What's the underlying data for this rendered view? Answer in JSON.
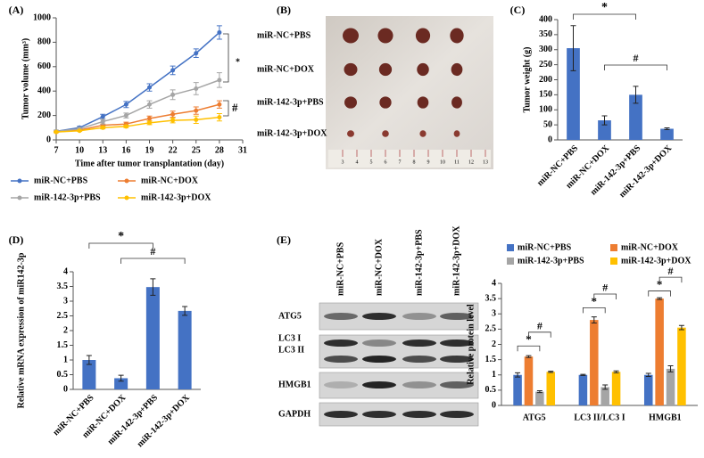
{
  "chart_data": [
    {
      "type": "line",
      "panel_label": "(A)",
      "x_label": "Time after tumor transplantation (day)",
      "y_label": "Tumor volume (mm³)",
      "x": [
        7,
        10,
        13,
        16,
        19,
        22,
        25,
        28
      ],
      "xlim": [
        7,
        31
      ],
      "xticks": [
        7,
        10,
        13,
        16,
        19,
        22,
        25,
        28,
        31
      ],
      "ylim": [
        0,
        1000
      ],
      "yticks": [
        0,
        200,
        400,
        600,
        800,
        1000
      ],
      "series": [
        {
          "name": "miR-NC+PBS",
          "color": "#4472c4",
          "values": [
            70,
            100,
            190,
            290,
            430,
            570,
            710,
            880
          ],
          "errors": [
            10,
            10,
            20,
            25,
            30,
            35,
            35,
            55
          ]
        },
        {
          "name": "miR-NC+DOX",
          "color": "#ed7d31",
          "values": [
            65,
            80,
            120,
            130,
            175,
            210,
            240,
            290
          ],
          "errors": [
            5,
            5,
            10,
            15,
            20,
            25,
            30,
            30
          ]
        },
        {
          "name": "miR-142-3p+PBS",
          "color": "#a5a5a5",
          "values": [
            70,
            90,
            150,
            200,
            290,
            370,
            420,
            490
          ],
          "errors": [
            10,
            10,
            20,
            20,
            30,
            40,
            50,
            60
          ]
        },
        {
          "name": "miR-142-3p+DOX",
          "color": "#ffc000",
          "values": [
            65,
            75,
            100,
            110,
            140,
            160,
            165,
            185
          ],
          "errors": [
            5,
            5,
            10,
            10,
            15,
            20,
            30,
            30
          ]
        }
      ],
      "annotations": [
        "*",
        "#"
      ]
    },
    {
      "type": "image",
      "panel_label": "(B)",
      "row_labels": [
        "miR-NC+PBS",
        "miR-NC+DOX",
        "miR-142-3p+PBS",
        "miR-142-3p+DOX"
      ],
      "ruler_labels": [
        3,
        4,
        5,
        6,
        7,
        8,
        9,
        10,
        11,
        12,
        13
      ]
    },
    {
      "type": "bar",
      "panel_label": "(C)",
      "y_label": "Tumor weight (g)",
      "categories": [
        "miR-NC+PBS",
        "miR-NC+DOX",
        "miR-142-3p+PBS",
        "miR-142-3p+DOX"
      ],
      "values": [
        305,
        65,
        150,
        37
      ],
      "errors": [
        75,
        15,
        28,
        3
      ],
      "color": "#4472c4",
      "ylim": [
        0,
        400
      ],
      "yticks": [
        0,
        50,
        100,
        150,
        200,
        250,
        300,
        350,
        400
      ],
      "annotations": [
        "*",
        "#"
      ]
    },
    {
      "type": "bar",
      "panel_label": "(D)",
      "y_label": "Relative mRNA expression of miR142-3p",
      "categories": [
        "miR-NC+PBS",
        "miR-NC+DOX",
        "miR-142-3p+PBS",
        "miR-142-3p+DOX"
      ],
      "values": [
        1.0,
        0.38,
        3.48,
        2.67
      ],
      "errors": [
        0.15,
        0.1,
        0.28,
        0.15
      ],
      "color": "#4472c4",
      "ylim": [
        0,
        4
      ],
      "yticks": [
        0,
        0.5,
        1,
        1.5,
        2,
        2.5,
        3,
        3.5,
        4
      ],
      "annotations": [
        "*",
        "#"
      ]
    },
    {
      "type": "blot",
      "panel_label": "(E)",
      "lane_labels": [
        "miR-NC+PBS",
        "miR-NC+DOX",
        "miR-142-3p+PBS",
        "miR-142-3p+DOX"
      ],
      "row_labels": [
        "ATG5",
        "LC3 I",
        "LC3 II",
        "HMGB1",
        "GAPDH"
      ]
    },
    {
      "type": "grouped_bar",
      "y_label": "Relative protein level",
      "categories": [
        "ATG5",
        "LC3 II/LC3 I",
        "HMGB1"
      ],
      "ylim": [
        0,
        4
      ],
      "yticks": [
        0,
        0.5,
        1,
        1.5,
        2,
        2.5,
        3,
        3.5,
        4
      ],
      "series": [
        {
          "name": "miR-NC+PBS",
          "color": "#4472c4",
          "values": [
            1.0,
            1.0,
            1.0
          ],
          "errors": [
            0.07,
            0.02,
            0.05
          ]
        },
        {
          "name": "miR-NC+DOX",
          "color": "#ed7d31",
          "values": [
            1.6,
            2.8,
            3.5
          ],
          "errors": [
            0.03,
            0.1,
            0.03
          ]
        },
        {
          "name": "miR-142-3p+PBS",
          "color": "#a5a5a5",
          "values": [
            0.45,
            0.6,
            1.2
          ],
          "errors": [
            0.03,
            0.07,
            0.1
          ]
        },
        {
          "name": "miR-142-3p+DOX",
          "color": "#ffc000",
          "values": [
            1.1,
            1.1,
            2.55
          ],
          "errors": [
            0.02,
            0.03,
            0.07
          ]
        }
      ],
      "annotations": [
        "*",
        "#",
        "*",
        "#",
        "*",
        "#"
      ]
    }
  ]
}
